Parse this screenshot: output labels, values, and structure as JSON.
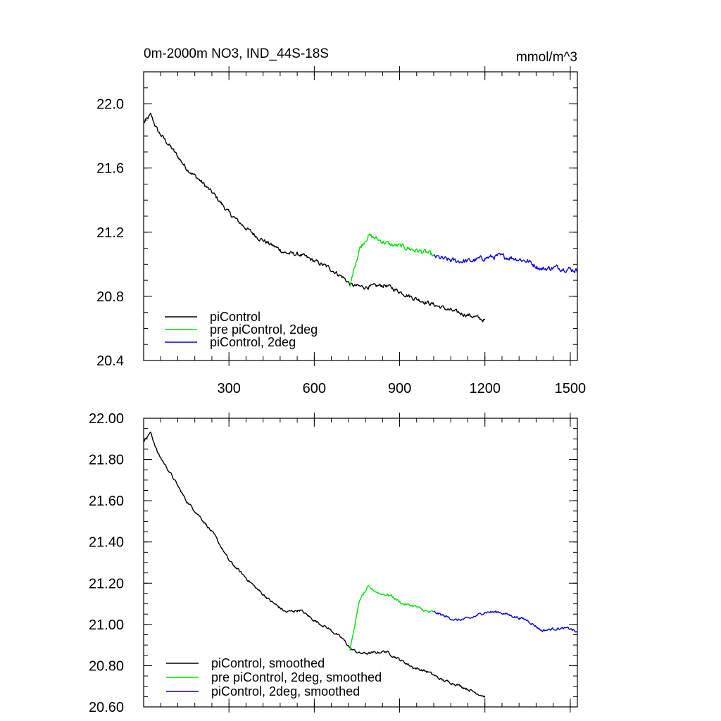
{
  "chart_data": [
    {
      "type": "line",
      "title": "0m-2000m NO3, IND_44S-18S",
      "units": "mmol/m^3",
      "xlim": [
        0,
        1525
      ],
      "ylim": [
        20.4,
        22.2
      ],
      "x_ticks": [
        300,
        600,
        900,
        1200,
        1500
      ],
      "x_tick_labels": [
        "300",
        "600",
        "900",
        "1200",
        "1500"
      ],
      "y_ticks": [
        20.4,
        20.8,
        21.2,
        21.6,
        22.0
      ],
      "y_tick_labels": [
        "20.4",
        "20.8",
        "21.2",
        "21.6",
        "22.0"
      ],
      "legend_position": "bottom-left",
      "series": [
        {
          "name": "piControl",
          "color": "#000000",
          "x": [
            0,
            25,
            50,
            100,
            150,
            200,
            250,
            300,
            350,
            400,
            450,
            500,
            550,
            600,
            650,
            700,
            730,
            760,
            800,
            850,
            900,
            950,
            1000,
            1050,
            1100,
            1150,
            1200
          ],
          "y": [
            21.88,
            21.93,
            21.83,
            21.72,
            21.6,
            21.52,
            21.43,
            21.32,
            21.24,
            21.17,
            21.12,
            21.07,
            21.06,
            21.02,
            20.98,
            20.92,
            20.87,
            20.86,
            20.86,
            20.87,
            20.83,
            20.79,
            20.76,
            20.73,
            20.7,
            20.68,
            20.65
          ],
          "noise": 0.025
        },
        {
          "name": "pre piControl, 2deg",
          "color": "#00e000",
          "x": [
            725,
            740,
            760,
            790,
            830,
            870,
            910,
            950,
            1000,
            1020
          ],
          "y": [
            20.85,
            20.98,
            21.1,
            21.18,
            21.15,
            21.12,
            21.11,
            21.09,
            21.07,
            21.05
          ],
          "noise": 0.03
        },
        {
          "name": "piControl, 2deg",
          "color": "#0000e0",
          "x": [
            1020,
            1060,
            1100,
            1150,
            1200,
            1250,
            1300,
            1350,
            1400,
            1450,
            1500,
            1525
          ],
          "y": [
            21.05,
            21.03,
            21.02,
            21.02,
            21.04,
            21.05,
            21.04,
            21.02,
            20.97,
            20.98,
            20.97,
            20.96
          ],
          "noise": 0.03
        }
      ]
    },
    {
      "type": "line",
      "title": "",
      "xlim": [
        0,
        1525
      ],
      "ylim": [
        20.6,
        22.0
      ],
      "x_ticks": [
        300,
        600,
        900,
        1200,
        1500
      ],
      "y_ticks": [
        20.6,
        20.8,
        21.0,
        21.2,
        21.4,
        21.6,
        21.8,
        22.0
      ],
      "y_tick_labels": [
        "20.60",
        "20.80",
        "21.00",
        "21.20",
        "21.40",
        "21.60",
        "21.80",
        "22.00"
      ],
      "legend_position": "bottom-left",
      "series": [
        {
          "name": "piControl, smoothed",
          "color": "#000000",
          "x": [
            0,
            25,
            50,
            100,
            150,
            200,
            250,
            300,
            350,
            400,
            450,
            500,
            550,
            600,
            650,
            700,
            730,
            760,
            800,
            850,
            900,
            950,
            1000,
            1050,
            1100,
            1150,
            1200
          ],
          "y": [
            21.89,
            21.93,
            21.83,
            21.72,
            21.6,
            21.52,
            21.43,
            21.31,
            21.24,
            21.17,
            21.11,
            21.06,
            21.07,
            21.02,
            20.98,
            20.93,
            20.88,
            20.86,
            20.86,
            20.87,
            20.83,
            20.79,
            20.77,
            20.73,
            20.71,
            20.68,
            20.65
          ],
          "noise": 0.012
        },
        {
          "name": "pre piControl, 2deg, smoothed",
          "color": "#00e000",
          "x": [
            725,
            740,
            760,
            790,
            830,
            870,
            910,
            950,
            1000,
            1020
          ],
          "y": [
            20.87,
            20.98,
            21.12,
            21.18,
            21.15,
            21.14,
            21.1,
            21.09,
            21.06,
            21.06
          ],
          "noise": 0.012
        },
        {
          "name": "piControl, 2deg, smoothed",
          "color": "#0000e0",
          "x": [
            1020,
            1060,
            1100,
            1150,
            1200,
            1250,
            1300,
            1350,
            1400,
            1450,
            1500,
            1525
          ],
          "y": [
            21.06,
            21.04,
            21.02,
            21.03,
            21.06,
            21.06,
            21.04,
            21.02,
            20.97,
            20.98,
            20.98,
            20.96
          ],
          "noise": 0.012
        }
      ]
    }
  ]
}
